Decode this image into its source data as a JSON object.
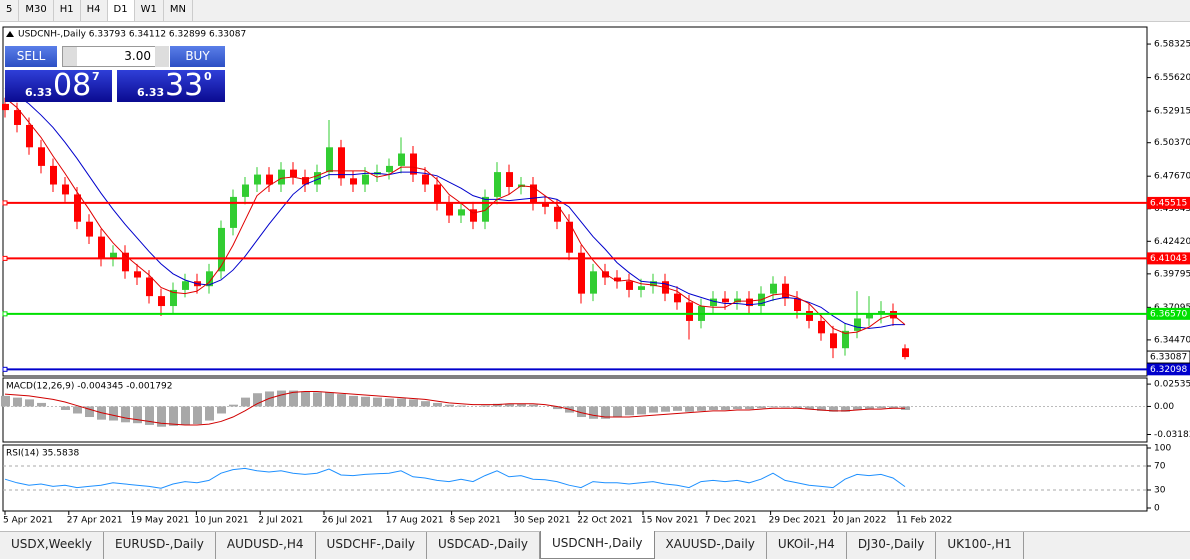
{
  "toolbar": {
    "timeframes": [
      "5",
      "M30",
      "H1",
      "H4",
      "D1",
      "W1",
      "MN"
    ],
    "active": 4
  },
  "trade_panel": {
    "sell": "SELL",
    "lots": "3.00",
    "buy": "BUY",
    "bid": {
      "big": "6.33",
      "digits": "08",
      "pip": "7"
    },
    "ask": {
      "big": "6.33",
      "digits": "33",
      "pip": "0"
    }
  },
  "chart_data": {
    "type": "candlestick",
    "title": "USDCNH-,Daily  6.33793 6.34112 6.32899 6.33087",
    "up_color": "#32cd32",
    "down_color": "#ff0000",
    "x_labels": [
      "5 Apr 2021",
      "27 Apr 2021",
      "19 May 2021",
      "10 Jun 2021",
      "2 Jul 2021",
      "26 Jul 2021",
      "17 Aug 2021",
      "8 Sep 2021",
      "30 Sep 2021",
      "22 Oct 2021",
      "15 Nov 2021",
      "7 Dec 2021",
      "29 Dec 2021",
      "20 Jan 2022",
      "11 Feb 2022"
    ],
    "ylim": [
      6.31559,
      6.597
    ],
    "yticks": [
      6.58325,
      {
        "value": 6.5562,
        "label": "6.55620"
      },
      6.52915,
      {
        "value": 6.5037,
        "label": "6.50370"
      },
      {
        "value": 6.4767,
        "label": "6.47670"
      },
      6.45045,
      {
        "value": 6.4242,
        "label": "6.42420"
      },
      6.39795,
      6.37095,
      {
        "value": 6.3447,
        "label": "6.34470"
      }
    ],
    "levels": [
      {
        "value": 6.45515,
        "color": "#ff0000"
      },
      {
        "value": 6.41043,
        "color": "#ff0000"
      },
      {
        "value": 6.3657,
        "label": "6.36570",
        "color": "#00e000"
      },
      {
        "value": 6.32098,
        "color": "#0000cc"
      }
    ],
    "current_price": 6.33087,
    "ohlc": [
      [
        6.535,
        6.54,
        6.524,
        6.53
      ],
      [
        6.53,
        6.536,
        6.512,
        6.518
      ],
      [
        6.518,
        6.524,
        6.494,
        6.5
      ],
      [
        6.5,
        6.506,
        6.479,
        6.485
      ],
      [
        6.485,
        6.491,
        6.464,
        6.47
      ],
      [
        6.47,
        6.476,
        6.456,
        6.462
      ],
      [
        6.462,
        6.468,
        6.434,
        6.44
      ],
      [
        6.44,
        6.446,
        6.422,
        6.428
      ],
      [
        6.428,
        6.434,
        6.404,
        6.41
      ],
      [
        6.41,
        6.421,
        6.404,
        6.415
      ],
      [
        6.415,
        6.421,
        6.394,
        6.4
      ],
      [
        6.4,
        6.406,
        6.389,
        6.395
      ],
      [
        6.395,
        6.401,
        6.374,
        6.38
      ],
      [
        6.38,
        6.386,
        6.364,
        6.372
      ],
      [
        6.372,
        6.391,
        6.366,
        6.385
      ],
      [
        6.385,
        6.398,
        6.379,
        6.392
      ],
      [
        6.392,
        6.398,
        6.382,
        6.388
      ],
      [
        6.388,
        6.406,
        6.382,
        6.4
      ],
      [
        6.4,
        6.441,
        6.394,
        6.435
      ],
      [
        6.435,
        6.466,
        6.429,
        6.46
      ],
      [
        6.46,
        6.476,
        6.454,
        6.47
      ],
      [
        6.47,
        6.484,
        6.464,
        6.478
      ],
      [
        6.478,
        6.484,
        6.464,
        6.47
      ],
      [
        6.47,
        6.488,
        6.464,
        6.482
      ],
      [
        6.482,
        6.488,
        6.47,
        6.476
      ],
      [
        6.476,
        6.482,
        6.464,
        6.47
      ],
      [
        6.47,
        6.486,
        6.464,
        6.48
      ],
      [
        6.48,
        6.522,
        6.474,
        6.5
      ],
      [
        6.5,
        6.506,
        6.469,
        6.475
      ],
      [
        6.475,
        6.481,
        6.464,
        6.47
      ],
      [
        6.47,
        6.484,
        6.464,
        6.478
      ],
      [
        6.478,
        6.486,
        6.472,
        6.48
      ],
      [
        6.48,
        6.491,
        6.474,
        6.485
      ],
      [
        6.485,
        6.508,
        6.479,
        6.495
      ],
      [
        6.495,
        6.501,
        6.472,
        6.478
      ],
      [
        6.478,
        6.484,
        6.464,
        6.47
      ],
      [
        6.47,
        6.476,
        6.449,
        6.455
      ],
      [
        6.455,
        6.461,
        6.439,
        6.445
      ],
      [
        6.445,
        6.456,
        6.439,
        6.45
      ],
      [
        6.45,
        6.456,
        6.434,
        6.44
      ],
      [
        6.44,
        6.466,
        6.434,
        6.46
      ],
      [
        6.46,
        6.488,
        6.454,
        6.48
      ],
      [
        6.48,
        6.486,
        6.462,
        6.468
      ],
      [
        6.468,
        6.476,
        6.462,
        6.47
      ],
      [
        6.47,
        6.476,
        6.449,
        6.455
      ],
      [
        6.455,
        6.461,
        6.446,
        6.452
      ],
      [
        6.452,
        6.458,
        6.434,
        6.44
      ],
      [
        6.44,
        6.446,
        6.409,
        6.415
      ],
      [
        6.415,
        6.421,
        6.374,
        6.382
      ],
      [
        6.382,
        6.406,
        6.376,
        6.4
      ],
      [
        6.4,
        6.406,
        6.389,
        6.395
      ],
      [
        6.395,
        6.401,
        6.386,
        6.392
      ],
      [
        6.392,
        6.398,
        6.379,
        6.385
      ],
      [
        6.385,
        6.394,
        6.379,
        6.388
      ],
      [
        6.388,
        6.398,
        6.382,
        6.392
      ],
      [
        6.392,
        6.398,
        6.376,
        6.382
      ],
      [
        6.382,
        6.388,
        6.369,
        6.375
      ],
      [
        6.375,
        6.381,
        6.345,
        6.36
      ],
      [
        6.36,
        6.378,
        6.354,
        6.372
      ],
      [
        6.372,
        6.384,
        6.366,
        6.378
      ],
      [
        6.378,
        6.384,
        6.369,
        6.375
      ],
      [
        6.375,
        6.384,
        6.369,
        6.378
      ],
      [
        6.378,
        6.384,
        6.366,
        6.372
      ],
      [
        6.372,
        6.388,
        6.366,
        6.382
      ],
      [
        6.382,
        6.396,
        6.376,
        6.39
      ],
      [
        6.39,
        6.396,
        6.372,
        6.378
      ],
      [
        6.378,
        6.384,
        6.362,
        6.368
      ],
      [
        6.368,
        6.374,
        6.354,
        6.36
      ],
      [
        6.36,
        6.366,
        6.344,
        6.35
      ],
      [
        6.35,
        6.356,
        6.33,
        6.338
      ],
      [
        6.338,
        6.358,
        6.332,
        6.352
      ],
      [
        6.352,
        6.384,
        6.346,
        6.362
      ],
      [
        6.362,
        6.38,
        6.356,
        6.366
      ],
      [
        6.366,
        6.376,
        6.358,
        6.368
      ],
      [
        6.368,
        6.374,
        6.356,
        6.362
      ],
      [
        6.33793,
        6.34112,
        6.32899,
        6.33087
      ]
    ],
    "ma_fast": {
      "color": "#e00000",
      "values": [
        6.54,
        6.532,
        6.52,
        6.508,
        6.493,
        6.479,
        6.464,
        6.45,
        6.435,
        6.423,
        6.413,
        6.405,
        6.397,
        6.387,
        6.383,
        6.382,
        6.384,
        6.391,
        6.404,
        6.421,
        6.441,
        6.461,
        6.469,
        6.475,
        6.476,
        6.474,
        6.477,
        6.481,
        6.481,
        6.481,
        6.481,
        6.476,
        6.478,
        6.484,
        6.484,
        6.482,
        6.474,
        6.462,
        6.455,
        6.447,
        6.449,
        6.458,
        6.462,
        6.469,
        6.468,
        6.461,
        6.454,
        6.44,
        6.422,
        6.409,
        6.398,
        6.392,
        6.393,
        6.39,
        6.389,
        6.387,
        6.384,
        6.377,
        6.372,
        6.371,
        6.371,
        6.376,
        6.376,
        6.377,
        6.381,
        6.382,
        6.379,
        6.374,
        6.364,
        6.354,
        6.35,
        6.351,
        6.355,
        6.362,
        6.365,
        6.357
      ]
    },
    "ma_slow": {
      "color": "#0000cc",
      "values": [
        6.548,
        6.542,
        6.535,
        6.526,
        6.516,
        6.504,
        6.491,
        6.477,
        6.463,
        6.45,
        6.438,
        6.427,
        6.416,
        6.406,
        6.398,
        6.393,
        6.39,
        6.389,
        6.393,
        6.401,
        6.412,
        6.425,
        6.438,
        6.45,
        6.462,
        6.47,
        6.474,
        6.478,
        6.478,
        6.478,
        6.479,
        6.479,
        6.478,
        6.48,
        6.48,
        6.479,
        6.477,
        6.472,
        6.467,
        6.461,
        6.458,
        6.458,
        6.457,
        6.458,
        6.459,
        6.46,
        6.458,
        6.452,
        6.44,
        6.428,
        6.418,
        6.407,
        6.399,
        6.392,
        6.391,
        6.39,
        6.387,
        6.382,
        6.379,
        6.376,
        6.374,
        6.374,
        6.373,
        6.374,
        6.377,
        6.379,
        6.378,
        6.375,
        6.371,
        6.364,
        6.358,
        6.355,
        6.354,
        6.355,
        6.357,
        6.357
      ]
    }
  },
  "macd": {
    "title": "MACD(12,26,9) -0.004345 -0.001792",
    "ylim": [
      -0.04034,
      0.03227
    ],
    "yticks": [
      0.025357,
      {
        "value": 0,
        "label": "0.00"
      },
      -0.03183
    ],
    "histogram_color": "#a8a8a8",
    "signal_color": "#d00000",
    "histogram": [
      0.012,
      0.01,
      0.008,
      0.004,
      0.0,
      -0.004,
      -0.008,
      -0.012,
      -0.015,
      -0.016,
      -0.018,
      -0.019,
      -0.021,
      -0.023,
      -0.022,
      -0.021,
      -0.02,
      -0.016,
      -0.008,
      0.002,
      0.01,
      0.015,
      0.017,
      0.018,
      0.018,
      0.017,
      0.016,
      0.016,
      0.014,
      0.012,
      0.011,
      0.01,
      0.009,
      0.009,
      0.008,
      0.006,
      0.004,
      0.002,
      0.001,
      0.0,
      0.001,
      0.003,
      0.003,
      0.003,
      0.002,
      0.0,
      -0.003,
      -0.007,
      -0.012,
      -0.014,
      -0.014,
      -0.012,
      -0.01,
      -0.009,
      -0.007,
      -0.006,
      -0.005,
      -0.006,
      -0.005,
      -0.004,
      -0.004,
      -0.003,
      -0.003,
      -0.002,
      -0.001,
      -0.001,
      -0.002,
      -0.003,
      -0.005,
      -0.006,
      -0.006,
      -0.004,
      -0.003,
      -0.002,
      -0.002,
      -0.004
    ],
    "signal": [
      0.014,
      0.013,
      0.012,
      0.01,
      0.008,
      0.005,
      0.001,
      -0.003,
      -0.007,
      -0.01,
      -0.013,
      -0.015,
      -0.017,
      -0.019,
      -0.02,
      -0.021,
      -0.021,
      -0.02,
      -0.017,
      -0.012,
      -0.005,
      0.003,
      0.009,
      0.013,
      0.016,
      0.017,
      0.017,
      0.016,
      0.015,
      0.014,
      0.013,
      0.012,
      0.011,
      0.01,
      0.009,
      0.008,
      0.006,
      0.004,
      0.003,
      0.002,
      0.002,
      0.002,
      0.003,
      0.003,
      0.003,
      0.002,
      0.0,
      -0.003,
      -0.007,
      -0.01,
      -0.012,
      -0.012,
      -0.012,
      -0.011,
      -0.01,
      -0.009,
      -0.008,
      -0.007,
      -0.006,
      -0.005,
      -0.005,
      -0.004,
      -0.004,
      -0.003,
      -0.002,
      -0.002,
      -0.002,
      -0.003,
      -0.004,
      -0.005,
      -0.005,
      -0.004,
      -0.003,
      -0.003,
      -0.002,
      -0.002
    ]
  },
  "rsi": {
    "title": "RSI(14) 35.5838",
    "ylim": [
      -5,
      105
    ],
    "yticks": [
      100,
      70,
      30,
      0
    ],
    "levels": [
      70,
      30
    ],
    "color": "#1e90ff",
    "values": [
      48,
      42,
      38,
      40,
      36,
      38,
      34,
      36,
      38,
      42,
      40,
      38,
      36,
      33,
      40,
      44,
      42,
      46,
      58,
      64,
      66,
      62,
      60,
      62,
      58,
      56,
      58,
      65,
      55,
      54,
      56,
      57,
      58,
      62,
      52,
      50,
      46,
      44,
      48,
      44,
      54,
      62,
      52,
      54,
      48,
      47,
      44,
      38,
      34,
      44,
      42,
      42,
      40,
      42,
      44,
      40,
      38,
      34,
      44,
      46,
      44,
      46,
      42,
      48,
      58,
      46,
      42,
      38,
      36,
      34,
      48,
      56,
      54,
      56,
      50,
      35.5838
    ]
  },
  "tabs": [
    "USDX,Weekly",
    "EURUSD-,Daily",
    "AUDUSD-,H4",
    "USDCHF-,Daily",
    "USDCAD-,Daily",
    "USDCNH-,Daily",
    "XAUUSD-,Daily",
    "UKOil-,H4",
    "DJ30-,Daily",
    "UK100-,H1"
  ],
  "active_tab": 5
}
